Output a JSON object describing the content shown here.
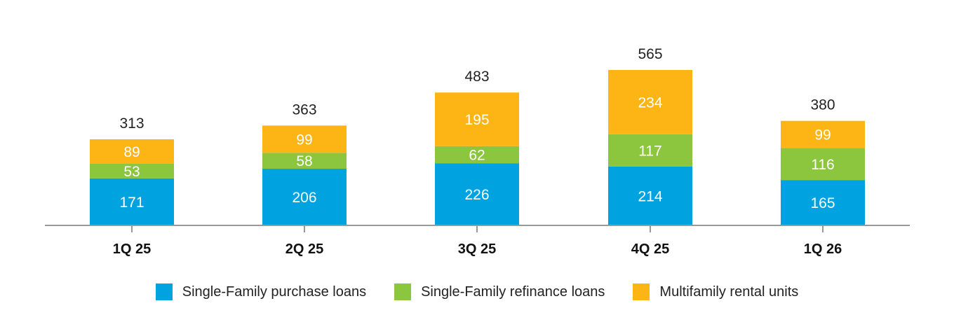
{
  "chart_data": {
    "type": "bar",
    "stacked": true,
    "categories": [
      "1Q 25",
      "2Q 25",
      "3Q 25",
      "4Q 25",
      "1Q 26"
    ],
    "series": [
      {
        "name": "Single-Family purchase loans",
        "color": "#00a3e0",
        "values": [
          171,
          206,
          226,
          214,
          165
        ]
      },
      {
        "name": "Single-Family refinance loans",
        "color": "#8cc63f",
        "values": [
          53,
          58,
          62,
          117,
          116
        ]
      },
      {
        "name": "Multifamily rental units",
        "color": "#fdb515",
        "values": [
          89,
          99,
          195,
          234,
          99
        ]
      }
    ],
    "totals": [
      313,
      363,
      483,
      565,
      380
    ],
    "ylim": [
      0,
      600
    ],
    "grid": false,
    "legend_position": "bottom"
  }
}
